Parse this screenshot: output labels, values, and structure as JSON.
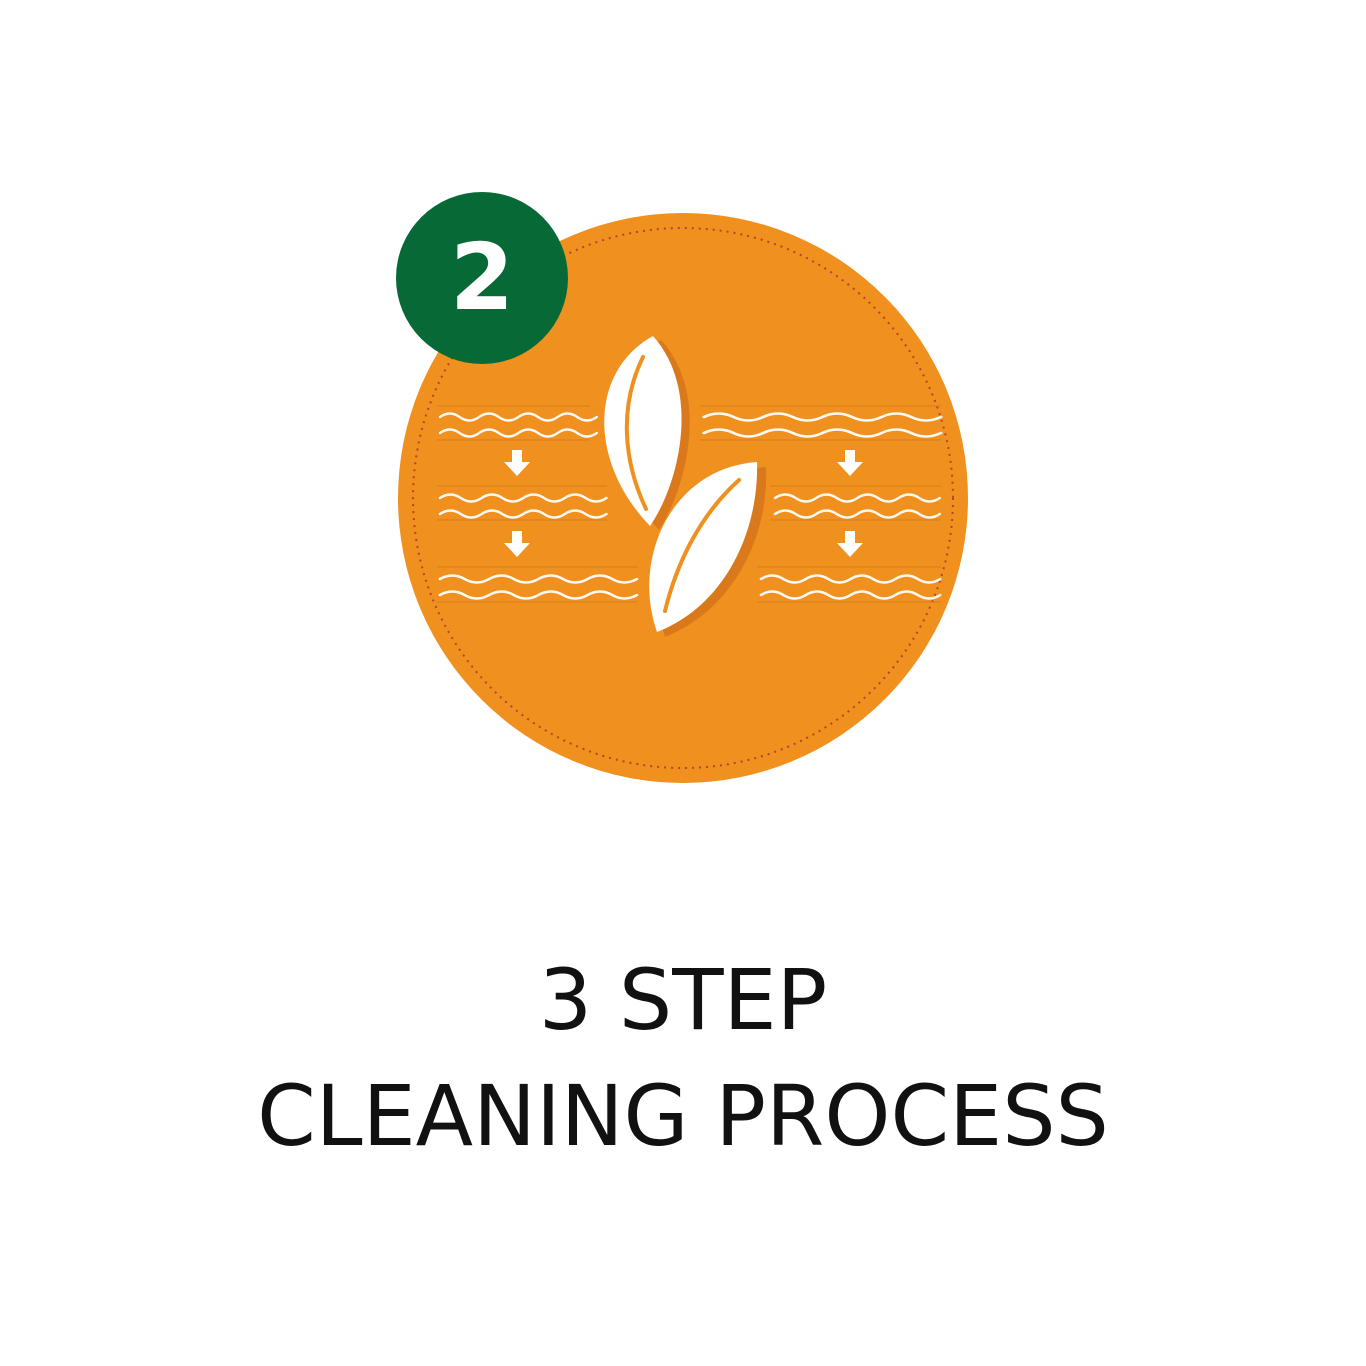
{
  "colors": {
    "orange": "#F0901E",
    "green": "#076A36",
    "white": "#FFFFFF",
    "leafShadow": "#D9791B",
    "dottedRing": "#B5442A"
  },
  "icons": {
    "badge": "orange-cleaning-badge",
    "step": "step-number-badge",
    "leaves": "leaf-icon",
    "arrows": "down-arrow-icon",
    "waves": "water-wave-icon"
  },
  "badge": {
    "step": "2"
  },
  "heading": {
    "line1": "3 STEP",
    "line2": "CLEANING PROCESS"
  }
}
